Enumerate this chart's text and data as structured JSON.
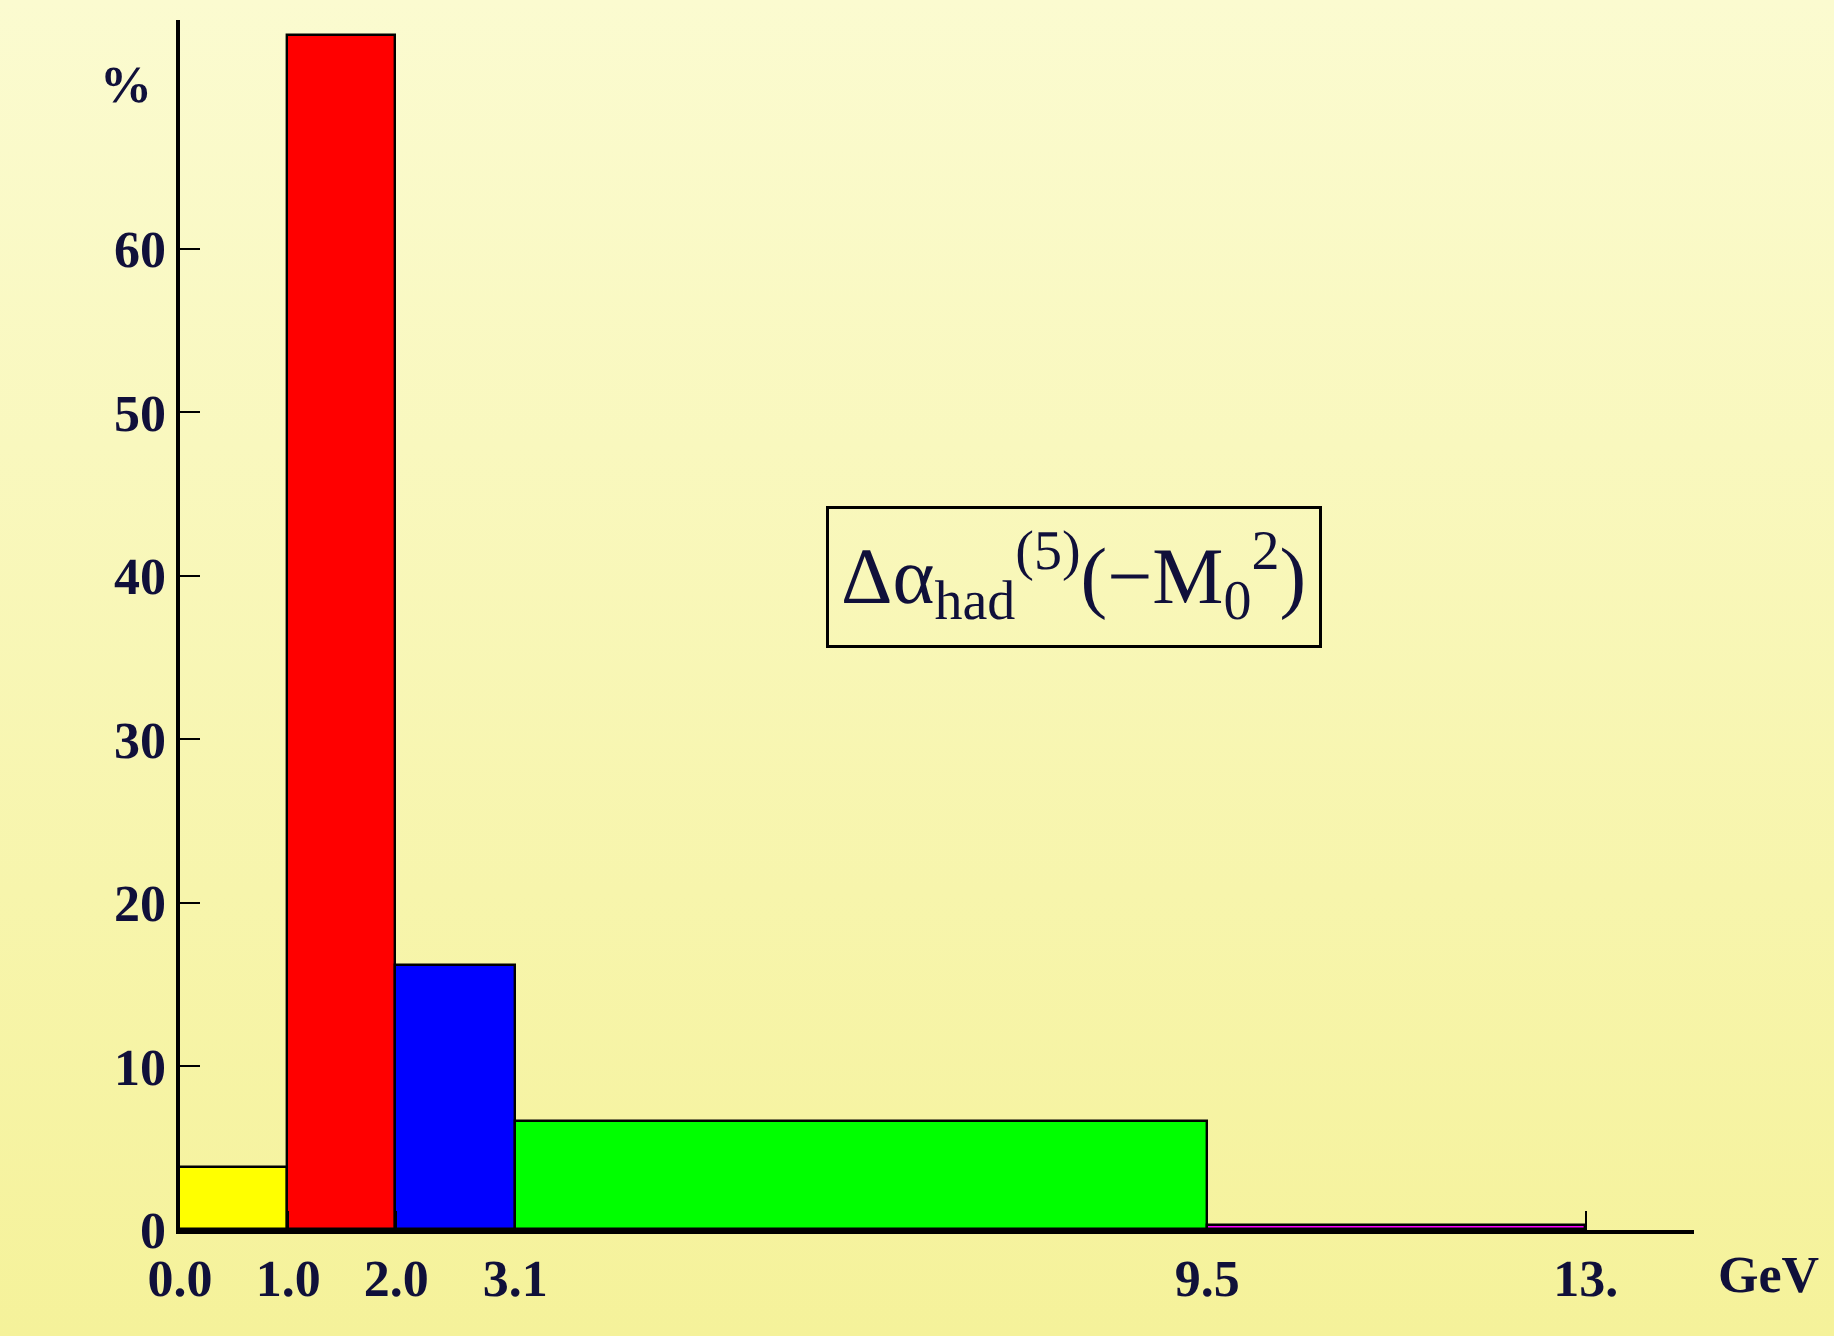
{
  "chart_data": {
    "type": "histogram",
    "bins": [
      0,
      1,
      2,
      3.1,
      9.5,
      13
    ],
    "values": [
      3.8,
      73,
      16.1,
      6.6,
      0.3
    ],
    "colors": [
      "#ffff00",
      "#ff0000",
      "#0000ff",
      "#00ff00",
      "#ff00ff"
    ],
    "ylim": [
      0,
      74
    ],
    "yticks": [
      0,
      10,
      20,
      30,
      40,
      50,
      60
    ],
    "xlim": [
      0,
      14
    ],
    "xticks": [
      {
        "value": 0,
        "label": "0.0"
      },
      {
        "value": 1,
        "label": "1.0"
      },
      {
        "value": 2,
        "label": "2.0"
      },
      {
        "value": 3.1,
        "label": "3.1"
      },
      {
        "value": 9.5,
        "label": "9.5"
      },
      {
        "value": 13,
        "label": "13."
      }
    ],
    "xlabel": "GeV",
    "ylabel": "%",
    "annotations": [
      "Δα$_{had}$$^{(5)}$(−M$_{0}$$^{2}$)"
    ]
  }
}
